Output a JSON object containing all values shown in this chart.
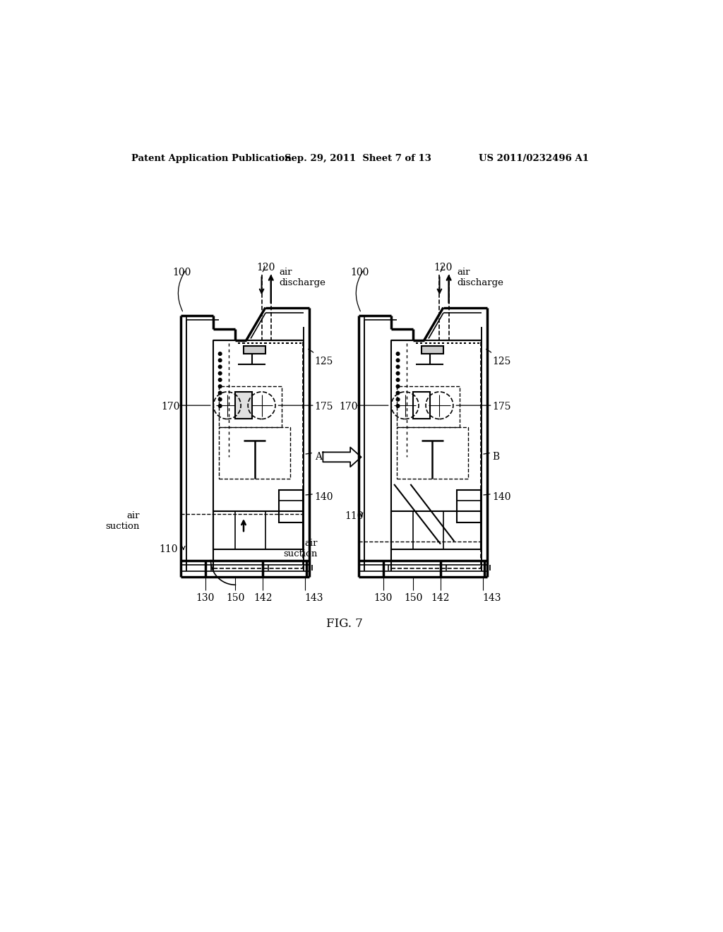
{
  "background_color": "#ffffff",
  "header_text": "Patent Application Publication",
  "header_date": "Sep. 29, 2011  Sheet 7 of 13",
  "header_patent": "US 2011/0232496 A1",
  "figure_label": "FIG. 7",
  "line_color": "#000000"
}
